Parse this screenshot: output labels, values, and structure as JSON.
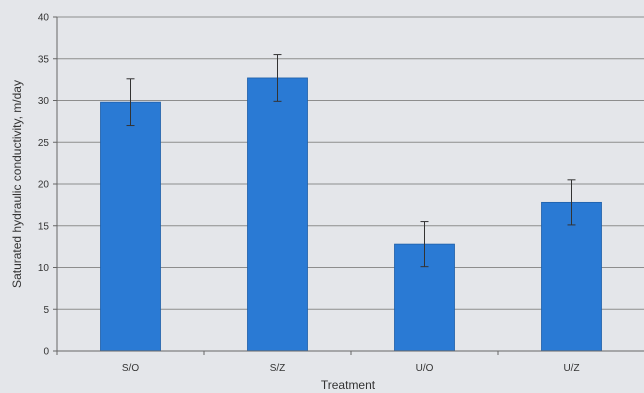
{
  "chart_data": {
    "type": "bar",
    "categories": [
      "S/O",
      "S/Z",
      "U/O",
      "U/Z"
    ],
    "values": [
      29.8,
      32.7,
      12.8,
      17.8
    ],
    "errors": [
      2.8,
      2.8,
      2.7,
      2.7
    ],
    "xlabel": "Treatment",
    "ylabel": "Saturated hydraulic conductivity, m/day",
    "ylim": [
      0,
      40
    ],
    "yticks": [
      0,
      5,
      10,
      15,
      20,
      25,
      30,
      35,
      40
    ],
    "grid": true,
    "legend": "none",
    "colors": {
      "bar": "#2a7ad4",
      "bar_edge": "#1f5fa8",
      "grid": "#8d8d8d",
      "error_bar": "#333333",
      "background": "#e4e6ea"
    }
  }
}
